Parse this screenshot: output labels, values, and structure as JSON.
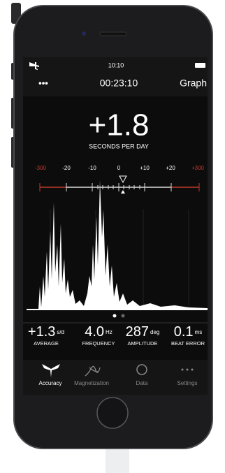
{
  "status_bar": {
    "time": "10:10"
  },
  "header": {
    "menu": "•••",
    "elapsed": "00:23:10",
    "graph_button": "Graph"
  },
  "rate": {
    "value": "+1.8",
    "unit_label": "SECONDS PER DAY"
  },
  "scale_labels": [
    "-300",
    "-20",
    "-10",
    "0",
    "+10",
    "+20",
    "+300"
  ],
  "stats": [
    {
      "value": "+1.3",
      "unit": "s/d",
      "label": "AVERAGE"
    },
    {
      "value": "4.0",
      "unit": "Hz",
      "label": "FREQUENCY"
    },
    {
      "value": "287",
      "unit": "deg",
      "label": "AMPLITUDE"
    },
    {
      "value": "0.1",
      "unit": "ms",
      "label": "BEAT ERROR"
    }
  ],
  "tabs": [
    "Accuracy",
    "Magnetization",
    "Data",
    "Settings"
  ]
}
